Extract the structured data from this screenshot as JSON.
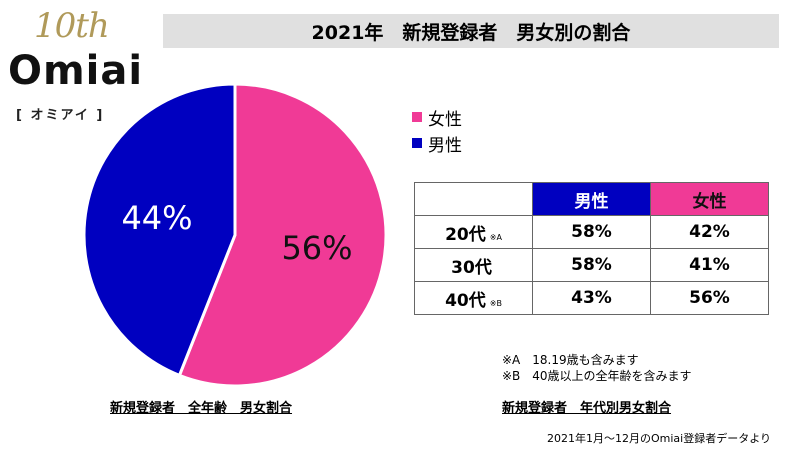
{
  "logo": {
    "anniversary": "10th",
    "brand": "Omiai",
    "kana": "[ オミアイ ]"
  },
  "title": "2021年　新規登録者　男女別の割合",
  "colors": {
    "female": "#f03a96",
    "male": "#0000c0",
    "title_bg": "#e0e0e0"
  },
  "legend": [
    {
      "label": "女性",
      "color": "#f03a96"
    },
    {
      "label": "男性",
      "color": "#0000c0"
    }
  ],
  "chart_data": [
    {
      "type": "pie",
      "title": "新規登録者　全年齢　男女割合",
      "slices": [
        {
          "name": "女性",
          "value": 56,
          "label": "56%",
          "color": "#f03a96"
        },
        {
          "name": "男性",
          "value": 44,
          "label": "44%",
          "color": "#0000c0"
        }
      ]
    },
    {
      "type": "table",
      "title": "新規登録者　年代別男女割合",
      "columns": [
        "",
        "男性",
        "女性"
      ],
      "rows": [
        {
          "age": "20代",
          "note": "※A",
          "male": "58%",
          "female": "42%"
        },
        {
          "age": "30代",
          "note": "",
          "male": "58%",
          "female": "41%"
        },
        {
          "age": "40代",
          "note": "※B",
          "male": "43%",
          "female": "56%"
        }
      ]
    }
  ],
  "notes": [
    "※A　18.19歳も含みます",
    "※B　40歳以上の全年齢を含みます"
  ],
  "source": "2021年1月～12月のOmiai登録者データより"
}
